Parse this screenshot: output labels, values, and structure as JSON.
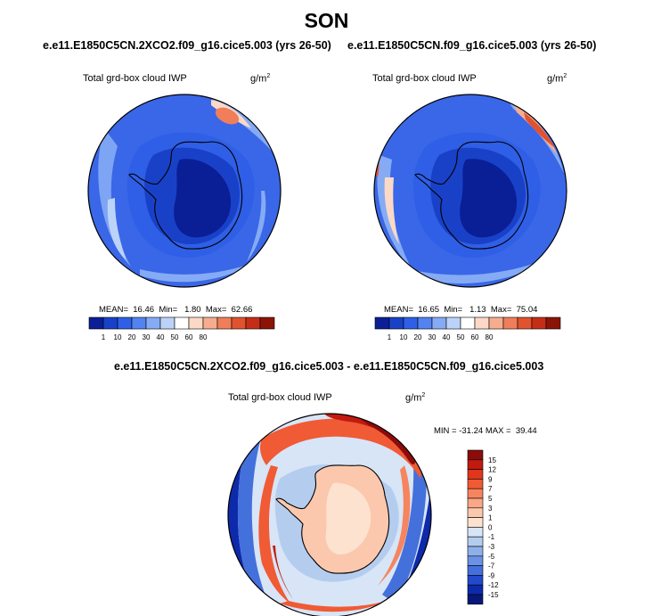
{
  "figure": {
    "title": "SON",
    "units_base": "g/m",
    "units_exp": "2",
    "variable": "Total grd-box cloud IWP"
  },
  "panels": [
    {
      "case": "e.e11.E1850C5CN.2XCO2.f09_g16.cice5.003 (yrs 26-50)",
      "variable": "Total grd-box cloud IWP",
      "stats": "MEAN=  16.46  Min=   1.80  Max=  62.66"
    },
    {
      "case": "e.e11.E1850C5CN.f09_g16.cice5.003 (yrs 26-50)",
      "variable": "Total grd-box cloud IWP",
      "stats": "MEAN=  16.65  Min=   1.13  Max=  75.04"
    },
    {
      "case": "e.e11.E1850C5CN.2XCO2.f09_g16.cice5.003 - e.e11.E1850C5CN.f09_g16.cice5.003",
      "variable": "Total grd-box cloud IWP",
      "stats": "MIN = -31.24 MAX =  39.44"
    }
  ],
  "colorbars": {
    "absolute": {
      "labels": [
        "1",
        "10",
        "20",
        "30",
        "40",
        "50",
        "60",
        "80"
      ],
      "colors": [
        "#0a1e96",
        "#1941c8",
        "#2f5fe6",
        "#5283f0",
        "#86abf5",
        "#bcd3f9",
        "#ffffff",
        "#fbd9c6",
        "#f6ad8f",
        "#f07e5a",
        "#e1522f",
        "#c42e17",
        "#8c1406"
      ]
    },
    "difference": {
      "labels": [
        "15",
        "12",
        "9",
        "7",
        "5",
        "3",
        "1",
        "0",
        "-1",
        "-3",
        "-5",
        "-7",
        "-9",
        "-12",
        "-15"
      ],
      "colors": [
        "#8c0b0b",
        "#c21a10",
        "#e0361b",
        "#f05a35",
        "#f6845e",
        "#f9a786",
        "#fcc8ad",
        "#fde2d0",
        "#d7e5f6",
        "#b4cdef",
        "#8eb0ea",
        "#6a91e6",
        "#4470dc",
        "#2349cc",
        "#0d2aab",
        "#08177a"
      ]
    }
  }
}
